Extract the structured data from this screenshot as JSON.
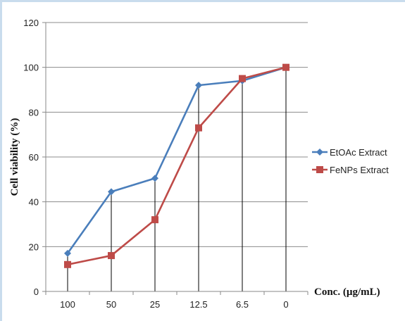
{
  "chart_data": {
    "type": "line",
    "categories": [
      "100",
      "50",
      "25",
      "12.5",
      "6.5",
      "0"
    ],
    "series": [
      {
        "name": "EtOAc Extract",
        "values": [
          17,
          44.5,
          50.5,
          92,
          94,
          100
        ],
        "color": "#4a7ebb",
        "marker": "diamond"
      },
      {
        "name": "FeNPs Extract",
        "values": [
          12,
          16,
          32,
          73,
          95,
          100
        ],
        "color": "#be4b48",
        "marker": "square"
      }
    ],
    "y_ticks": [
      "0",
      "20",
      "40",
      "60",
      "80",
      "100",
      "120"
    ],
    "ylim": [
      0,
      120
    ],
    "ylabel": "Cell viability (%)",
    "xlabel": "Conc. (µg/mL)",
    "title": "",
    "grid": true,
    "legend_position": "right"
  }
}
